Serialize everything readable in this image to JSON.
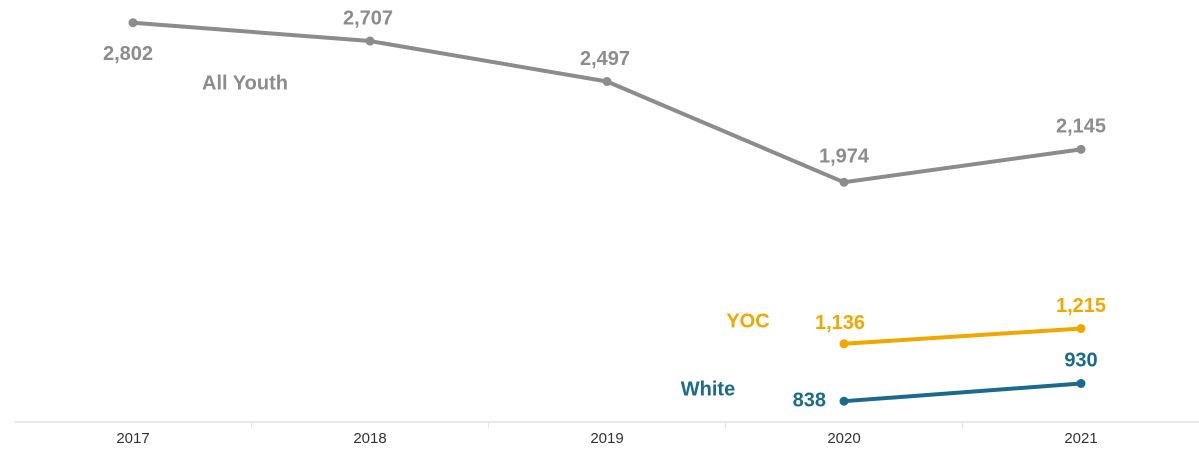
{
  "chart_data": {
    "type": "line",
    "categories": [
      "2017",
      "2018",
      "2019",
      "2020",
      "2021"
    ],
    "ylim": [
      730,
      2920
    ],
    "series": [
      {
        "name": "All Youth",
        "color": "#8c8c8c",
        "values": [
          2802,
          2707,
          2497,
          1974,
          2145
        ],
        "value_labels": [
          "2,802",
          "2,707",
          "2,497",
          "1,974",
          "2,145"
        ]
      },
      {
        "name": "YOC",
        "color": "#f0a800",
        "values": [
          null,
          null,
          null,
          1136,
          1215
        ],
        "value_labels": [
          null,
          null,
          null,
          "1,136",
          "1,215"
        ]
      },
      {
        "name": "White",
        "color": "#1a6a8f",
        "values": [
          null,
          null,
          null,
          838,
          930
        ],
        "value_labels": [
          null,
          null,
          null,
          "838",
          "930"
        ]
      }
    ]
  }
}
